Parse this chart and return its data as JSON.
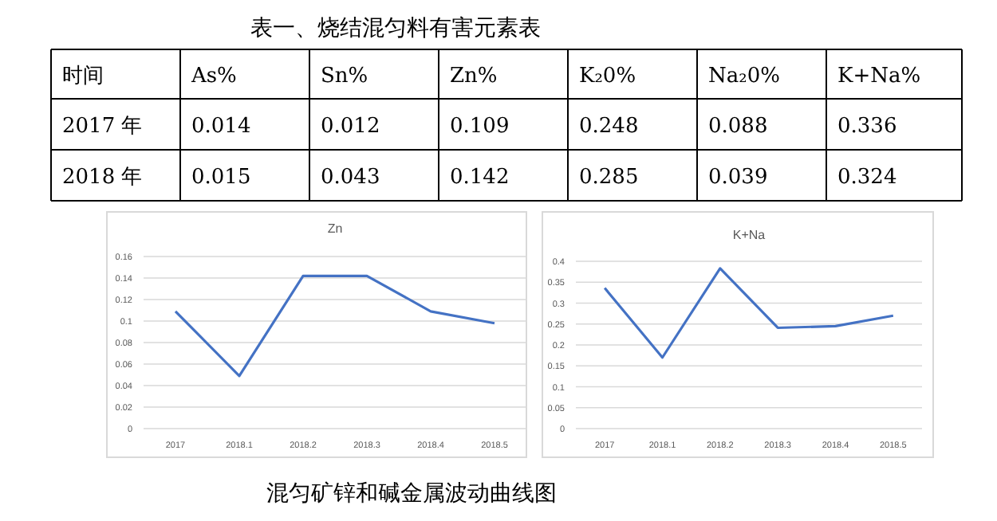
{
  "chart_data": [
    {
      "type": "other",
      "title": "表一、烧结混匀料有害元素表",
      "annotations": [
        "时间",
        "As%",
        "Sn%",
        "Zn%",
        "K₂0%",
        "Na₂0%",
        "K+Na%",
        "2017 年",
        "0.014",
        "0.012",
        "0.109",
        "0.248",
        "0.088",
        "0.336",
        "2018 年",
        "0.015",
        "0.043",
        "0.142",
        "0.285",
        "0.039",
        "0.324"
      ]
    },
    {
      "type": "line",
      "title": "Zn",
      "categories": [
        "2017",
        "2018.1",
        "2018.2",
        "2018.3",
        "2018.4",
        "2018.5"
      ],
      "series": [
        {
          "color": "#4472c4",
          "values": [
            0.109,
            0.049,
            0.142,
            0.142,
            0.109,
            0.098
          ]
        }
      ],
      "ylim": [
        0,
        0.16
      ],
      "yticks": [
        0,
        0.02,
        0.04,
        0.06,
        0.08,
        0.1,
        0.12,
        0.14,
        0.16
      ],
      "grid": "y"
    },
    {
      "type": "line",
      "title": "K+Na",
      "categories": [
        "2017",
        "2018.1",
        "2018.2",
        "2018.3",
        "2018.4",
        "2018.5"
      ],
      "series": [
        {
          "color": "#4472c4",
          "values": [
            0.336,
            0.17,
            0.383,
            0.241,
            0.245,
            0.27
          ]
        }
      ],
      "ylim": [
        0,
        0.4
      ],
      "yticks": [
        0,
        0.05,
        0.1,
        0.15,
        0.2,
        0.25,
        0.3,
        0.35,
        0.4
      ],
      "grid": "y"
    },
    {
      "type": "other",
      "title": "混匀矿锌和碱金属波动曲线图"
    }
  ]
}
